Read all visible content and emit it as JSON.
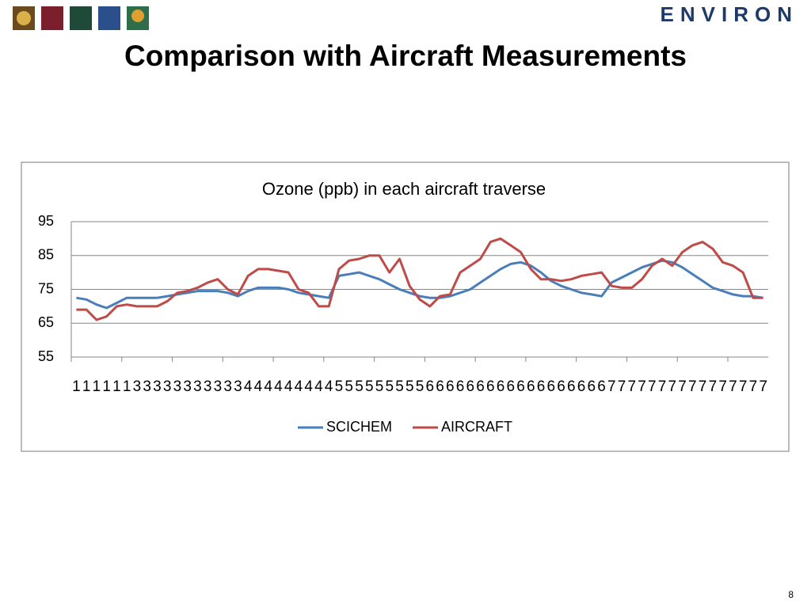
{
  "logo": "ENVIRON",
  "slide_title": "Comparison with Aircraft Measurements",
  "page_number": "8",
  "chart_data": {
    "type": "line",
    "title": "Ozone (ppb) in each aircraft traverse",
    "categories": [
      "1",
      "1",
      "1",
      "1",
      "1",
      "1",
      "3",
      "3",
      "3",
      "3",
      "3",
      "3",
      "3",
      "3",
      "3",
      "3",
      "3",
      "4",
      "4",
      "4",
      "4",
      "4",
      "4",
      "4",
      "4",
      "4",
      "5",
      "5",
      "5",
      "5",
      "5",
      "5",
      "5",
      "5",
      "5",
      "6",
      "6",
      "6",
      "6",
      "6",
      "6",
      "6",
      "6",
      "6",
      "6",
      "6",
      "6",
      "6",
      "6",
      "6",
      "6",
      "6",
      "6",
      "7",
      "7",
      "7",
      "7",
      "7",
      "7",
      "7",
      "7",
      "7",
      "7",
      "7",
      "7",
      "7",
      "7",
      "7",
      "7"
    ],
    "series": [
      {
        "name": "SCICHEM",
        "color": "#4a7ebb",
        "values": [
          72.5,
          72,
          70.5,
          69.5,
          71,
          72.5,
          72.5,
          72.5,
          72.5,
          73,
          73.5,
          74,
          74.5,
          74.5,
          74.5,
          74,
          73,
          74.5,
          75.5,
          75.5,
          75.5,
          75,
          74,
          73.5,
          73,
          72.5,
          79,
          79.5,
          80,
          79,
          78,
          76.5,
          75,
          74,
          73,
          72.5,
          72.5,
          73,
          74,
          75,
          77,
          79,
          81,
          82.5,
          83,
          82,
          80,
          77.5,
          76,
          75,
          74,
          73.5,
          73,
          77,
          78.5,
          80,
          81.5,
          82.5,
          83.5,
          83,
          81.5,
          79.5,
          77.5,
          75.5,
          74.5,
          73.5,
          73,
          73,
          72.5
        ]
      },
      {
        "name": "AIRCRAFT",
        "color": "#be4b48",
        "values": [
          69,
          69,
          66,
          67,
          70,
          70.5,
          70,
          70,
          70,
          71.5,
          74,
          74.5,
          75.5,
          77,
          78,
          75,
          73.5,
          79,
          81,
          81,
          80.5,
          80,
          75,
          74,
          70,
          70,
          81,
          83.5,
          84,
          85,
          85,
          80,
          84,
          76,
          72,
          70,
          73,
          73.5,
          80,
          82,
          84,
          89,
          90,
          88,
          86,
          81,
          78,
          78,
          77.5,
          78,
          79,
          79.5,
          80,
          76,
          75.5,
          75.5,
          78,
          82,
          84,
          82,
          86,
          88,
          89,
          87,
          83,
          82,
          80,
          72.5,
          72.5
        ]
      }
    ],
    "ylim": [
      55,
      95
    ],
    "yticks": [
      55,
      65,
      75,
      85,
      95
    ],
    "grid": true,
    "legend": "bottom"
  }
}
